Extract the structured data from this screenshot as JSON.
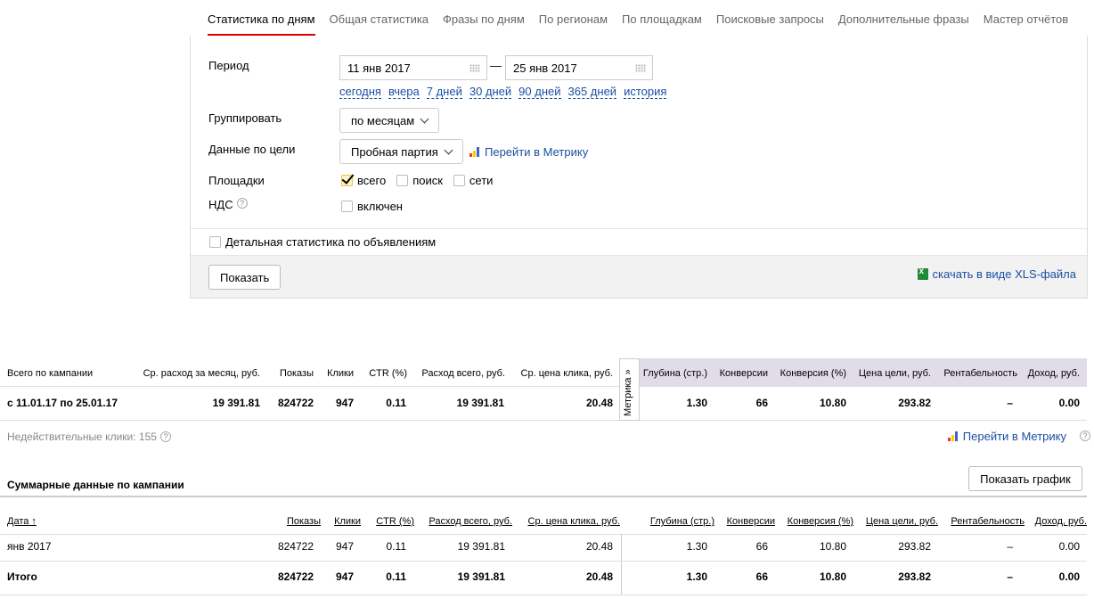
{
  "tabs": [
    "Статистика по дням",
    "Общая статистика",
    "Фразы по дням",
    "По регионам",
    "По площадкам",
    "Поисковые запросы",
    "Дополнительные фразы",
    "Мастер отчётов"
  ],
  "filters": {
    "period_label": "Период",
    "date_from": "11 янв 2017",
    "date_to": "25 янв 2017",
    "dash": "—",
    "quick_links": [
      "сегодня",
      "вчера",
      "7 дней",
      "30 дней",
      "90 дней",
      "365 дней",
      "история"
    ],
    "group_label": "Группировать",
    "group_value": "по месяцам",
    "goal_label": "Данные по цели",
    "goal_value": "Пробная партия",
    "metrika_link": "Перейти в Метрику",
    "platforms_label": "Площадки",
    "platforms": [
      {
        "label": "всего",
        "checked": true
      },
      {
        "label": "поиск",
        "checked": false
      },
      {
        "label": "сети",
        "checked": false
      }
    ],
    "vat_label": "НДС",
    "vat_option": "включен",
    "detailed_label": "Детальная статистика по объявлениям",
    "show_button": "Показать",
    "xls_link": "скачать в виде XLS-файла"
  },
  "totals": {
    "headers": {
      "campaign": "Всего по кампании",
      "avg_month": "Ср. расход за месяц, руб.",
      "shows": "Показы",
      "clicks": "Клики",
      "ctr": "CTR (%)",
      "spend": "Расход всего, руб.",
      "cpc": "Ср. цена клика, руб.",
      "depth": "Глубина (стр.)",
      "conversions": "Конверсии",
      "conv_rate": "Конверсия (%)",
      "goal_price": "Цена цели, руб.",
      "profitability": "Рентабельность",
      "income": "Доход, руб."
    },
    "row": {
      "period": "с 11.01.17 по 25.01.17",
      "avg_month": "19 391.81",
      "shows": "824722",
      "clicks": "947",
      "ctr": "0.11",
      "spend": "19 391.81",
      "cpc": "20.48",
      "depth": "1.30",
      "conversions": "66",
      "conv_rate": "10.80",
      "goal_price": "293.82",
      "profitability": "–",
      "income": "0.00"
    },
    "metrika_tab": "Метрика »",
    "invalid_clicks": "Недействительные клики: 155",
    "metrika_link": "Перейти в Метрику"
  },
  "summary": {
    "title": "Суммарные данные по кампании",
    "graph_button": "Показать график",
    "headers": {
      "date": "Дата ↑",
      "shows": "Показы",
      "clicks": "Клики",
      "ctr": "CTR (%)",
      "spend": "Расход всего, руб.",
      "cpc": "Ср. цена клика, руб.",
      "depth": "Глубина (стр.)",
      "conversions": "Конверсии",
      "conv_rate": "Конверсия (%)",
      "goal_price": "Цена цели, руб.",
      "profitability": "Рентабельность",
      "income": "Доход, руб."
    },
    "rows": [
      {
        "date": "янв 2017",
        "shows": "824722",
        "clicks": "947",
        "ctr": "0.11",
        "spend": "19 391.81",
        "cpc": "20.48",
        "depth": "1.30",
        "conversions": "66",
        "conv_rate": "10.80",
        "goal_price": "293.82",
        "profitability": "–",
        "income": "0.00"
      },
      {
        "date": "Итого",
        "shows": "824722",
        "clicks": "947",
        "ctr": "0.11",
        "spend": "19 391.81",
        "cpc": "20.48",
        "depth": "1.30",
        "conversions": "66",
        "conv_rate": "10.80",
        "goal_price": "293.82",
        "profitability": "–",
        "income": "0.00"
      }
    ]
  }
}
